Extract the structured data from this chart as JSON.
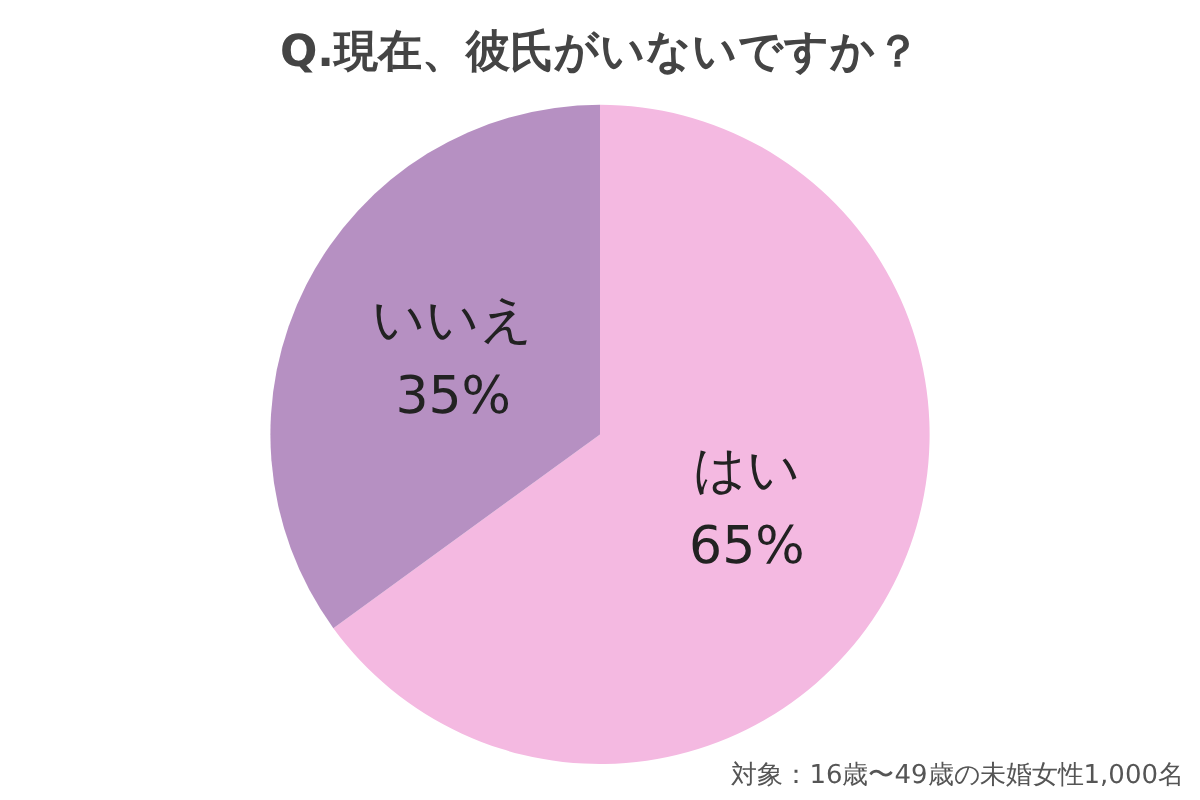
{
  "chart_data": {
    "type": "pie",
    "title": "Q.現在、彼氏がいないですか？",
    "categories": [
      "はい",
      "いいえ"
    ],
    "values": [
      65,
      35
    ],
    "value_labels": [
      "65%",
      "35%"
    ],
    "colors": [
      "#f4b9e1",
      "#b690c2"
    ],
    "legend": false,
    "annotations": [
      "対象：16歳〜49歳の未婚女性1,000名"
    ]
  }
}
